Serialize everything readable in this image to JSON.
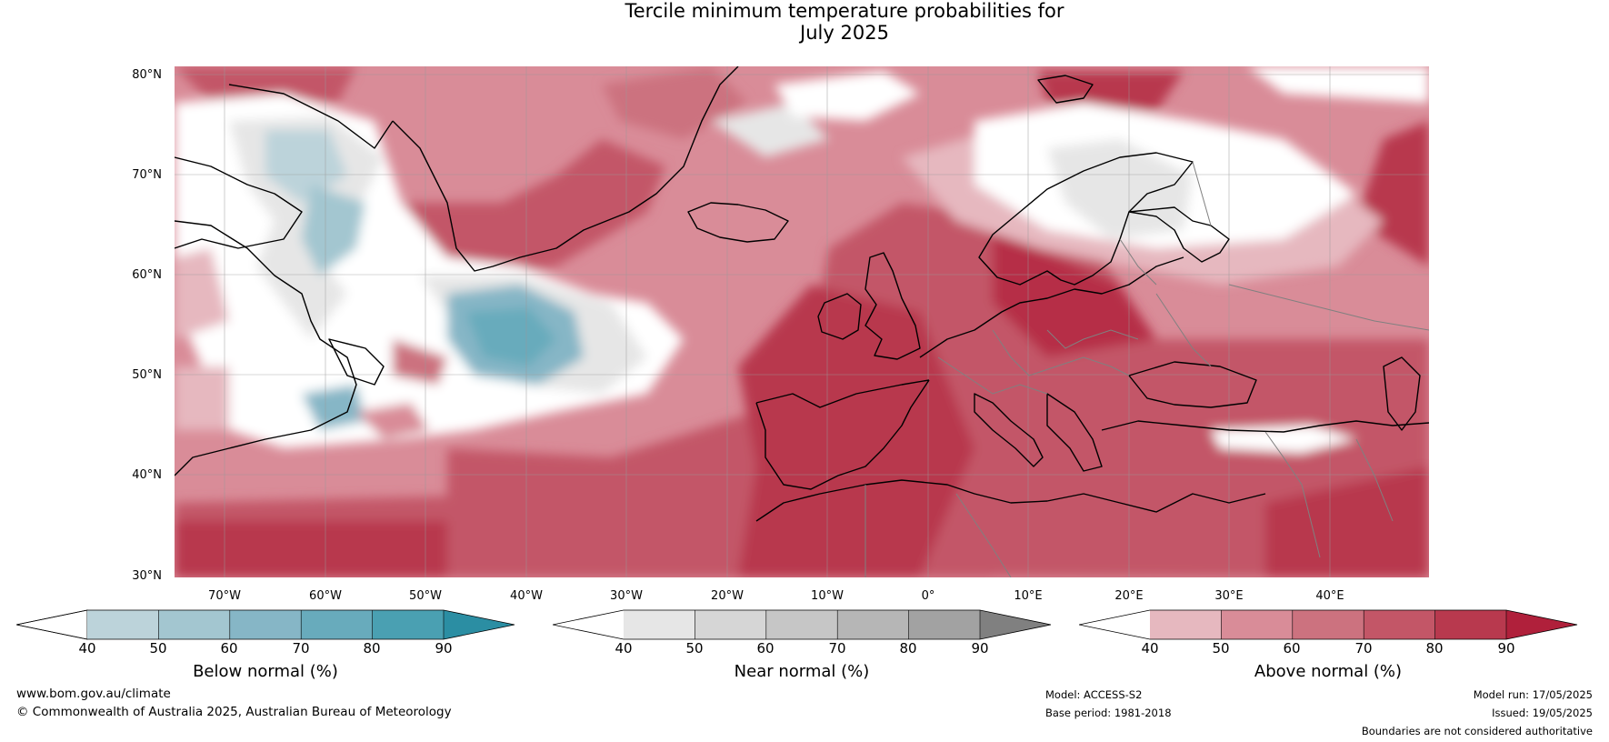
{
  "title": {
    "line1": "Tercile minimum temperature probabilities for",
    "line2": "July 2025"
  },
  "axes": {
    "lat_labels": [
      "80°N",
      "70°N",
      "60°N",
      "50°N",
      "40°N",
      "30°N"
    ],
    "lon_labels": [
      "70°W",
      "60°W",
      "50°W",
      "40°W",
      "30°W",
      "20°W",
      "10°W",
      "0°",
      "10°E",
      "20°E",
      "30°E",
      "40°E"
    ]
  },
  "colorbars": [
    {
      "label": "Below normal (%)",
      "ticks": [
        "40",
        "50",
        "60",
        "70",
        "80",
        "90"
      ],
      "colors": [
        "#ffffff",
        "#bcd3da",
        "#a3c6d0",
        "#86b6c6",
        "#68abbc",
        "#4aa0b2",
        "#2b8ea3"
      ]
    },
    {
      "label": "Near normal (%)",
      "ticks": [
        "40",
        "50",
        "60",
        "70",
        "80",
        "90"
      ],
      "colors": [
        "#ffffff",
        "#e6e6e6",
        "#d6d6d6",
        "#c6c6c6",
        "#b6b6b6",
        "#a2a2a2",
        "#808080"
      ]
    },
    {
      "label": "Above normal (%)",
      "ticks": [
        "40",
        "50",
        "60",
        "70",
        "80",
        "90"
      ],
      "colors": [
        "#ffffff",
        "#e6b8bf",
        "#d98c98",
        "#cc727f",
        "#c35667",
        "#b8394e",
        "#b0203b"
      ]
    }
  ],
  "footer": {
    "website": "www.bom.gov.au/climate",
    "copyright": "© Commonwealth of Australia 2025, Australian Bureau of Meteorology",
    "model": "Model: ACCESS-S2",
    "base_period": "Base period: 1981-2018",
    "model_run": "Model run: 17/05/2025",
    "issued": "Issued: 19/05/2025",
    "disclaimer": "Boundaries are not considered authoritative"
  }
}
